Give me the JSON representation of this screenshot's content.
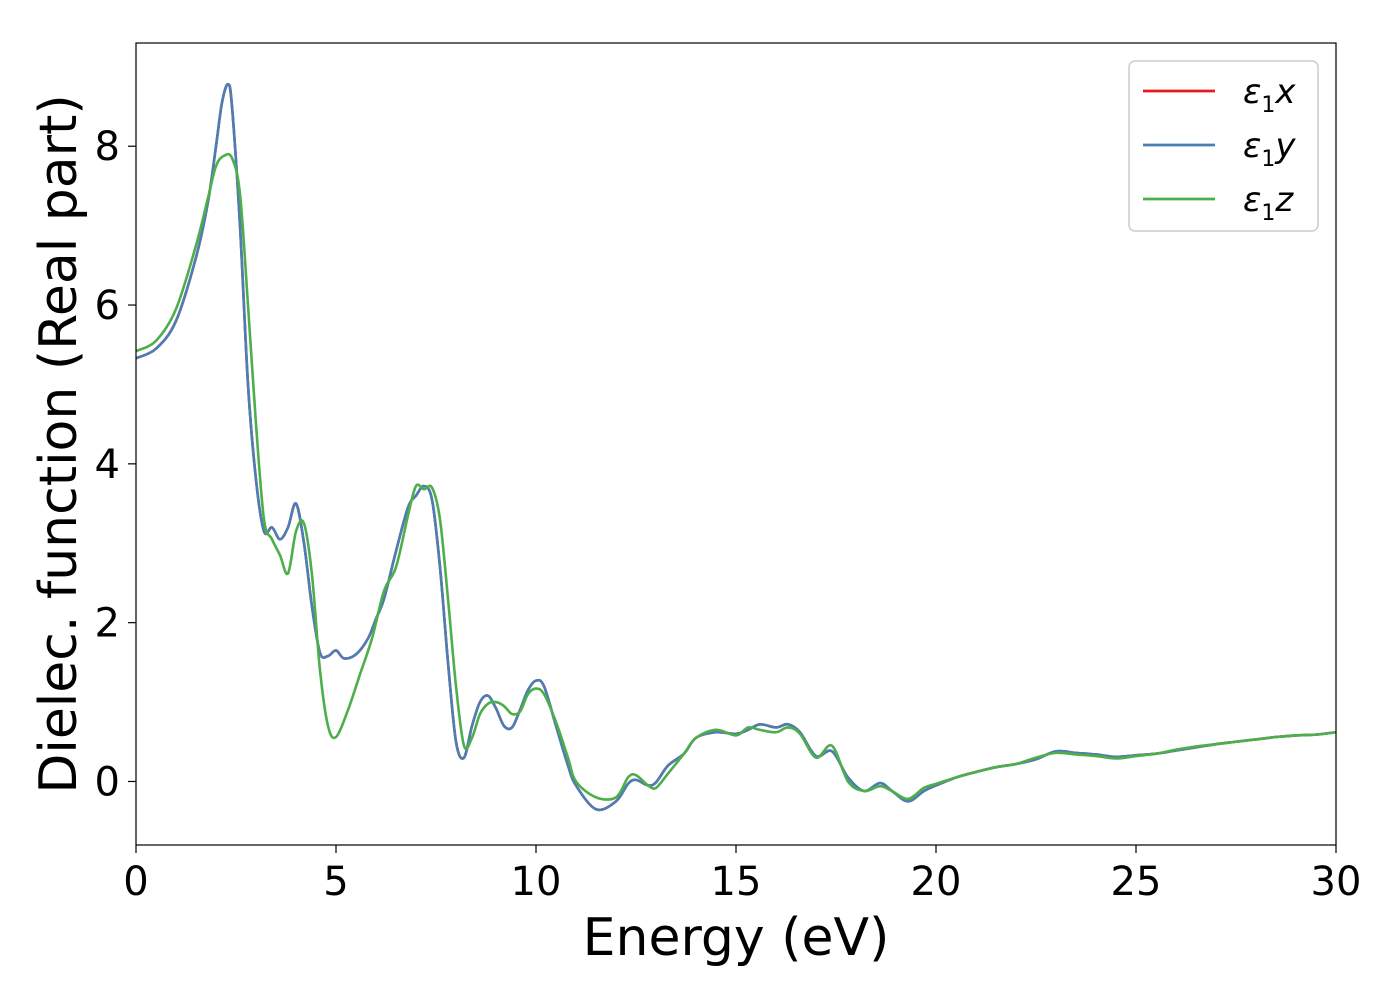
{
  "chart_data": {
    "type": "line",
    "title": "",
    "xlabel": "Energy (eV)",
    "ylabel": "Dielec. function (Real part)",
    "xlim": [
      0,
      30
    ],
    "ylim": [
      -0.8,
      9.3
    ],
    "xticks": [
      0,
      5,
      10,
      15,
      20,
      25,
      30
    ],
    "yticks": [
      0,
      2,
      4,
      6,
      8
    ],
    "grid": false,
    "legend_position": "top-right",
    "series": [
      {
        "name": "ε1x",
        "legend_base": "ε",
        "legend_sub": "1",
        "legend_var": "x",
        "color": "#e41a1c",
        "x": [
          0,
          0.5,
          1.0,
          1.5,
          1.8,
          2.0,
          2.15,
          2.3,
          2.4,
          2.6,
          2.8,
          3.0,
          3.2,
          3.4,
          3.6,
          3.8,
          4.0,
          4.2,
          4.4,
          4.6,
          4.8,
          5.0,
          5.2,
          5.5,
          5.8,
          6.0,
          6.2,
          6.5,
          6.8,
          7.0,
          7.2,
          7.4,
          7.6,
          7.8,
          8.0,
          8.2,
          8.4,
          8.6,
          8.8,
          9.0,
          9.2,
          9.4,
          9.6,
          9.8,
          10.0,
          10.2,
          10.5,
          10.8,
          11.0,
          11.5,
          12.0,
          12.3,
          12.5,
          12.8,
          13.0,
          13.3,
          13.7,
          14.0,
          14.5,
          15.0,
          15.3,
          15.6,
          16.0,
          16.3,
          16.6,
          17.0,
          17.4,
          17.8,
          18.2,
          18.6,
          18.9,
          19.3,
          19.7,
          20.0,
          20.5,
          21.0,
          21.5,
          22.0,
          22.5,
          23.0,
          23.5,
          24.0,
          24.5,
          25.0,
          25.5,
          26.0,
          26.5,
          27.0,
          27.5,
          28.0,
          28.5,
          29.0,
          29.5,
          30.0
        ],
        "values": [
          5.33,
          5.45,
          5.8,
          6.6,
          7.3,
          8.0,
          8.55,
          8.78,
          8.5,
          7.0,
          5.0,
          3.8,
          3.15,
          3.2,
          3.05,
          3.2,
          3.5,
          3.0,
          2.2,
          1.62,
          1.58,
          1.65,
          1.55,
          1.6,
          1.8,
          2.05,
          2.3,
          2.9,
          3.45,
          3.6,
          3.72,
          3.55,
          2.7,
          1.5,
          0.5,
          0.3,
          0.7,
          1.0,
          1.08,
          0.92,
          0.7,
          0.68,
          0.9,
          1.15,
          1.27,
          1.2,
          0.7,
          0.2,
          -0.05,
          -0.35,
          -0.25,
          -0.03,
          0.02,
          -0.05,
          -0.01,
          0.2,
          0.35,
          0.55,
          0.62,
          0.6,
          0.65,
          0.72,
          0.68,
          0.72,
          0.62,
          0.32,
          0.38,
          0.05,
          -0.12,
          -0.02,
          -0.12,
          -0.25,
          -0.12,
          -0.05,
          0.05,
          0.12,
          0.18,
          0.22,
          0.28,
          0.38,
          0.36,
          0.34,
          0.31,
          0.33,
          0.35,
          0.39,
          0.43,
          0.47,
          0.5,
          0.53,
          0.56,
          0.58,
          0.59,
          0.62
        ]
      },
      {
        "name": "ε1y",
        "legend_base": "ε",
        "legend_sub": "1",
        "legend_var": "y",
        "color": "#4a7fb5",
        "x": [
          0,
          0.5,
          1.0,
          1.5,
          1.8,
          2.0,
          2.15,
          2.3,
          2.4,
          2.6,
          2.8,
          3.0,
          3.2,
          3.4,
          3.6,
          3.8,
          4.0,
          4.2,
          4.4,
          4.6,
          4.8,
          5.0,
          5.2,
          5.5,
          5.8,
          6.0,
          6.2,
          6.5,
          6.8,
          7.0,
          7.2,
          7.4,
          7.6,
          7.8,
          8.0,
          8.2,
          8.4,
          8.6,
          8.8,
          9.0,
          9.2,
          9.4,
          9.6,
          9.8,
          10.0,
          10.2,
          10.5,
          10.8,
          11.0,
          11.5,
          12.0,
          12.3,
          12.5,
          12.8,
          13.0,
          13.3,
          13.7,
          14.0,
          14.5,
          15.0,
          15.3,
          15.6,
          16.0,
          16.3,
          16.6,
          17.0,
          17.4,
          17.8,
          18.2,
          18.6,
          18.9,
          19.3,
          19.7,
          20.0,
          20.5,
          21.0,
          21.5,
          22.0,
          22.5,
          23.0,
          23.5,
          24.0,
          24.5,
          25.0,
          25.5,
          26.0,
          26.5,
          27.0,
          27.5,
          28.0,
          28.5,
          29.0,
          29.5,
          30.0
        ],
        "values": [
          5.33,
          5.45,
          5.8,
          6.6,
          7.3,
          8.0,
          8.55,
          8.78,
          8.5,
          7.0,
          5.0,
          3.8,
          3.15,
          3.2,
          3.05,
          3.2,
          3.5,
          3.0,
          2.2,
          1.62,
          1.58,
          1.65,
          1.55,
          1.6,
          1.8,
          2.05,
          2.3,
          2.9,
          3.45,
          3.6,
          3.72,
          3.55,
          2.7,
          1.5,
          0.5,
          0.3,
          0.7,
          1.0,
          1.08,
          0.92,
          0.7,
          0.68,
          0.9,
          1.15,
          1.27,
          1.2,
          0.7,
          0.2,
          -0.05,
          -0.35,
          -0.25,
          -0.03,
          0.02,
          -0.05,
          -0.01,
          0.2,
          0.35,
          0.55,
          0.62,
          0.6,
          0.65,
          0.72,
          0.68,
          0.72,
          0.62,
          0.32,
          0.38,
          0.05,
          -0.12,
          -0.02,
          -0.12,
          -0.25,
          -0.12,
          -0.05,
          0.05,
          0.12,
          0.18,
          0.22,
          0.28,
          0.38,
          0.36,
          0.34,
          0.31,
          0.33,
          0.35,
          0.39,
          0.43,
          0.47,
          0.5,
          0.53,
          0.56,
          0.58,
          0.59,
          0.62
        ]
      },
      {
        "name": "ε1z",
        "legend_base": "ε",
        "legend_sub": "1",
        "legend_var": "z",
        "color": "#4daf4a",
        "x": [
          0,
          0.5,
          1.0,
          1.5,
          1.8,
          2.0,
          2.2,
          2.4,
          2.6,
          2.8,
          3.0,
          3.2,
          3.4,
          3.6,
          3.8,
          4.0,
          4.2,
          4.4,
          4.6,
          4.8,
          5.0,
          5.3,
          5.6,
          5.9,
          6.2,
          6.5,
          6.8,
          7.0,
          7.2,
          7.4,
          7.6,
          7.8,
          8.0,
          8.2,
          8.4,
          8.6,
          8.8,
          9.0,
          9.2,
          9.4,
          9.6,
          9.8,
          10.0,
          10.2,
          10.5,
          10.8,
          11.0,
          11.5,
          12.0,
          12.3,
          12.5,
          12.8,
          13.0,
          13.3,
          13.7,
          14.0,
          14.5,
          15.0,
          15.3,
          15.6,
          16.0,
          16.3,
          16.6,
          17.0,
          17.4,
          17.8,
          18.2,
          18.6,
          18.9,
          19.3,
          19.7,
          20.0,
          20.5,
          21.0,
          21.5,
          22.0,
          22.5,
          23.0,
          23.5,
          24.0,
          24.5,
          25.0,
          25.5,
          26.0,
          26.5,
          27.0,
          27.5,
          28.0,
          28.5,
          29.0,
          29.5,
          30.0
        ],
        "values": [
          5.42,
          5.55,
          5.95,
          6.75,
          7.35,
          7.75,
          7.88,
          7.85,
          7.4,
          6.0,
          4.5,
          3.3,
          3.05,
          2.85,
          2.62,
          3.15,
          3.25,
          2.6,
          1.4,
          0.7,
          0.56,
          0.9,
          1.35,
          1.8,
          2.4,
          2.7,
          3.35,
          3.72,
          3.68,
          3.7,
          3.3,
          2.3,
          1.2,
          0.45,
          0.55,
          0.85,
          0.98,
          1.0,
          0.95,
          0.85,
          0.88,
          1.1,
          1.17,
          1.1,
          0.75,
          0.3,
          0.0,
          -0.2,
          -0.2,
          0.05,
          0.08,
          -0.05,
          -0.08,
          0.1,
          0.35,
          0.55,
          0.65,
          0.58,
          0.68,
          0.65,
          0.62,
          0.68,
          0.6,
          0.3,
          0.45,
          0.0,
          -0.12,
          -0.06,
          -0.12,
          -0.22,
          -0.08,
          -0.03,
          0.05,
          0.12,
          0.18,
          0.22,
          0.3,
          0.36,
          0.34,
          0.32,
          0.29,
          0.32,
          0.35,
          0.4,
          0.44,
          0.47,
          0.5,
          0.53,
          0.56,
          0.58,
          0.59,
          0.62
        ]
      }
    ]
  }
}
